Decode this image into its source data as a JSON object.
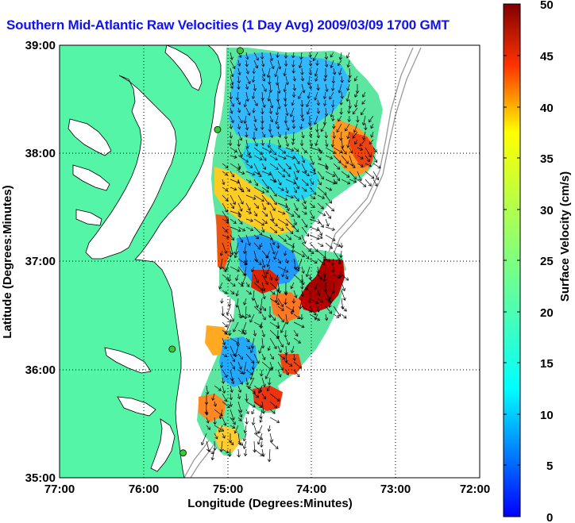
{
  "title": "Southern Mid-Atlantic Raw Velocities (1 Day Avg) 2009/03/09 1700 GMT",
  "map": {
    "xlabel": "Longitude (Degrees:Minutes)",
    "ylabel": "Latitude (Degrees:Minutes)",
    "x_ticks": [
      "77:00",
      "76:00",
      "75:00",
      "74:00",
      "73:00",
      "72:00"
    ],
    "y_ticks": [
      "39:00",
      "38:00",
      "37:00",
      "36:00",
      "35:00"
    ],
    "lon_range": [
      -77,
      -72
    ],
    "lat_range": [
      35,
      39
    ],
    "grid": "dotted",
    "land_color": "#55f5a8",
    "coast_color": "#000000",
    "station_color": "#33cc33"
  },
  "colorbar": {
    "label": "Surface Velocity (cm/s)",
    "ticks": [
      "50",
      "45",
      "40",
      "35",
      "30",
      "25",
      "20",
      "15",
      "10",
      "5",
      "0"
    ],
    "range": [
      0,
      50
    ],
    "colormap": "jet"
  },
  "stations": [
    {
      "lon": -74.85,
      "lat": 38.95
    },
    {
      "lon": -75.12,
      "lat": 38.22
    },
    {
      "lon": -75.66,
      "lat": 36.19
    },
    {
      "lon": -75.53,
      "lat": 35.23
    }
  ]
}
